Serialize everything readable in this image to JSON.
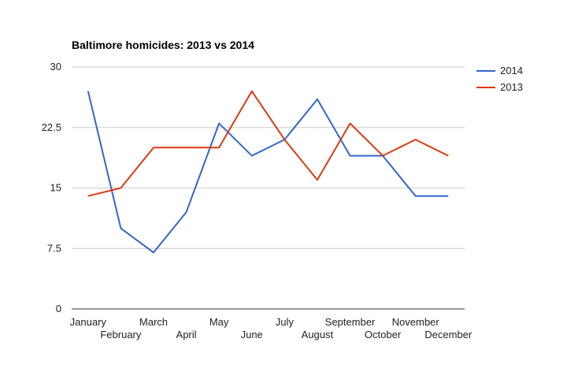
{
  "chart_data": {
    "type": "line",
    "title": "Baltimore homicides: 2013 vs 2014",
    "xlabel": "",
    "ylabel": "",
    "categories": [
      "January",
      "February",
      "March",
      "April",
      "May",
      "June",
      "July",
      "August",
      "September",
      "October",
      "November",
      "December"
    ],
    "ylim": [
      0,
      30
    ],
    "yticks": [
      "0",
      "7.5",
      "15",
      "22.5",
      "30"
    ],
    "grid": true,
    "legend_position": "right",
    "series": [
      {
        "name": "2014",
        "color": "#3366cc",
        "values": [
          27,
          10,
          7,
          12,
          23,
          19,
          21,
          26,
          19,
          19,
          14,
          14
        ]
      },
      {
        "name": "2013",
        "color": "#dc3912",
        "values": [
          14,
          15,
          20,
          20,
          20,
          27,
          21,
          16,
          23,
          19,
          21,
          19
        ]
      }
    ]
  }
}
